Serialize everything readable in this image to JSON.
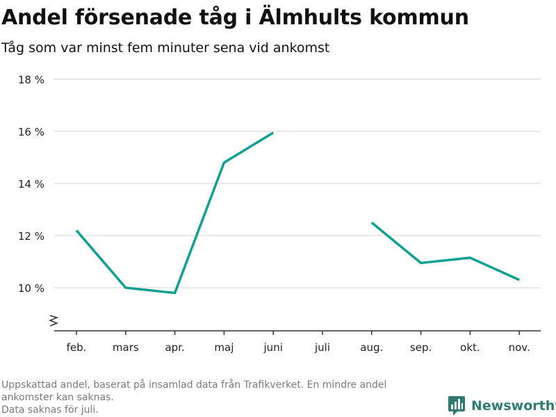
{
  "header": {
    "title": "Andel försenade tåg i Älmhults kommun",
    "subtitle": "Tåg som var minst fem minuter sena vid ankomst"
  },
  "chart_data": {
    "type": "line",
    "categories": [
      "feb.",
      "mars",
      "apr.",
      "maj",
      "juni",
      "juli",
      "aug.",
      "sep.",
      "okt.",
      "nov."
    ],
    "series": [
      {
        "values": [
          12.2,
          10.0,
          9.8,
          14.8,
          15.95,
          null,
          12.5,
          10.95,
          11.15,
          10.3
        ]
      }
    ],
    "y_ticks": [
      10,
      12,
      14,
      16,
      18
    ],
    "y_tick_labels": [
      "10 %",
      "12 %",
      "14 %",
      "16 %",
      "18 %"
    ],
    "ylim": [
      9,
      18
    ],
    "y_axis_break": true,
    "grid": true,
    "colors": {
      "line": "#0ea095",
      "grid": "#d9d9d9",
      "axis": "#333333"
    }
  },
  "footer": {
    "note_1": "Uppskattad andel, baserat på insamlad data från Trafikverket. En mindre andel",
    "note_2": "ankomster kan saknas.",
    "note_3": "Data saknas för juli."
  },
  "brand": {
    "name": "Newsworthy",
    "icon": "newsworthy-logo-icon",
    "color": "#2e7b73"
  }
}
